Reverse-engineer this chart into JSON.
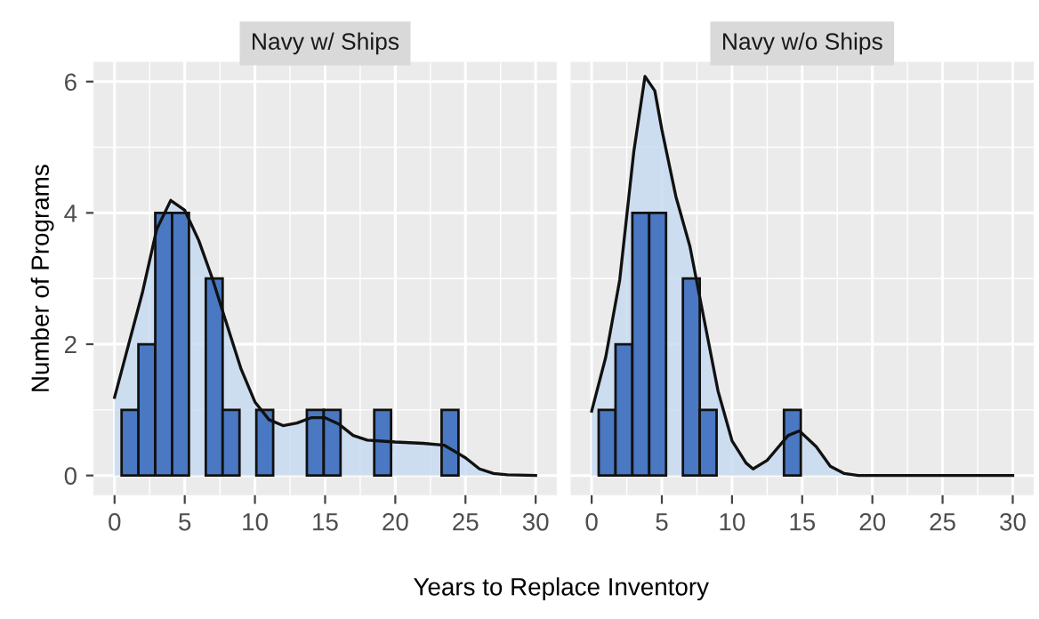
{
  "chart_data": [
    {
      "type": "histogram",
      "title": "Navy w/ Ships",
      "xlabel": "Years to Replace Inventory",
      "ylabel": "Number of Programs",
      "bins": [
        0.5,
        1.7,
        2.9,
        4.1,
        5.3,
        6.5,
        7.7,
        8.9,
        10.1,
        11.3,
        12.5,
        13.7,
        14.9,
        16.1,
        17.3,
        18.5,
        19.7,
        20.9,
        22.1,
        23.3,
        24.5
      ],
      "values": [
        1,
        2,
        4,
        4,
        0,
        3,
        1,
        0,
        1,
        0,
        0,
        1,
        1,
        0,
        0,
        1,
        0,
        0,
        0,
        1
      ],
      "color": "#4a78c2",
      "series": [
        {
          "type": "area",
          "color": "#c6d9f1",
          "x": [
            0,
            2,
            3,
            4,
            5,
            6,
            7,
            8,
            9,
            10,
            11,
            12,
            13,
            14,
            15,
            16,
            17,
            18,
            20,
            22,
            23.5,
            25,
            26,
            27,
            28,
            30
          ],
          "values": [
            1.19,
            2.8,
            3.75,
            4.19,
            4.04,
            3.58,
            2.98,
            2.3,
            1.63,
            1.12,
            0.85,
            0.76,
            0.8,
            0.88,
            0.88,
            0.78,
            0.61,
            0.54,
            0.51,
            0.49,
            0.46,
            0.27,
            0.1,
            0.03,
            0.01,
            0
          ]
        }
      ],
      "xlim": [
        -1.5,
        31.5
      ],
      "xticks": [
        0,
        5,
        10,
        15,
        20,
        25,
        30
      ],
      "ylim": [
        -0.3,
        6.3
      ],
      "yticks": [
        0,
        2,
        4,
        6
      ],
      "grid": true
    },
    {
      "type": "histogram",
      "title": "Navy w/o Ships",
      "bins": [
        0.5,
        1.7,
        2.9,
        4.1,
        5.3,
        6.5,
        7.7,
        8.9,
        10.1,
        11.3,
        12.5,
        13.7,
        14.9,
        16.1,
        17.3,
        18.5,
        19.7,
        20.9,
        22.1,
        23.3,
        24.5
      ],
      "values": [
        1,
        2,
        4,
        4,
        0,
        3,
        1,
        0,
        0,
        0,
        0,
        1,
        0,
        0,
        0,
        0,
        0,
        0,
        0,
        0
      ],
      "color": "#4a78c2",
      "series": [
        {
          "type": "area",
          "color": "#c6d9f1",
          "x": [
            0,
            1,
            2,
            3,
            3.8,
            4.5,
            5,
            6,
            7,
            8,
            9,
            10,
            11,
            11.5,
            12.5,
            14,
            14.8,
            16,
            17,
            18,
            19,
            30
          ],
          "values": [
            0.98,
            1.8,
            2.98,
            4.93,
            6.08,
            5.86,
            5.27,
            4.25,
            3.49,
            2.39,
            1.29,
            0.53,
            0.19,
            0.1,
            0.23,
            0.61,
            0.68,
            0.44,
            0.14,
            0.03,
            0,
            0
          ]
        }
      ],
      "xlim": [
        -1.5,
        31.5
      ],
      "xticks": [
        0,
        5,
        10,
        15,
        20,
        25,
        30
      ],
      "ylim": [
        -0.3,
        6.3
      ],
      "yticks": [
        0,
        2,
        4,
        6
      ],
      "grid": true,
      "tick_labels": "x"
    }
  ]
}
